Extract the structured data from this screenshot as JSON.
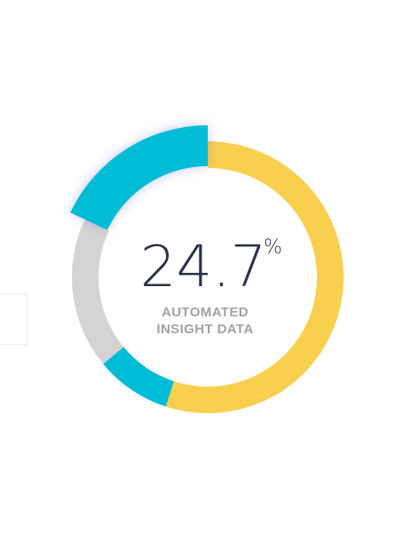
{
  "chart_data": {
    "type": "pie",
    "variant": "donut",
    "value": "24.7",
    "unit": "%",
    "caption_lines": [
      "AUTOMATED",
      "INSIGHT DATA"
    ],
    "segments": [
      {
        "start_fraction": 0.0,
        "end_fraction": 0.55,
        "color": "#f9cf4e"
      },
      {
        "start_fraction": 0.55,
        "end_fraction": 0.64,
        "color": "#00bcd4"
      },
      {
        "start_fraction": 0.64,
        "end_fraction": 0.82,
        "color": "#d4d4d4"
      },
      {
        "start_fraction": 0.82,
        "end_fraction": 1.0,
        "color": "#00bcd4",
        "highlighted": true
      }
    ],
    "highlight_fraction": 0.18
  }
}
